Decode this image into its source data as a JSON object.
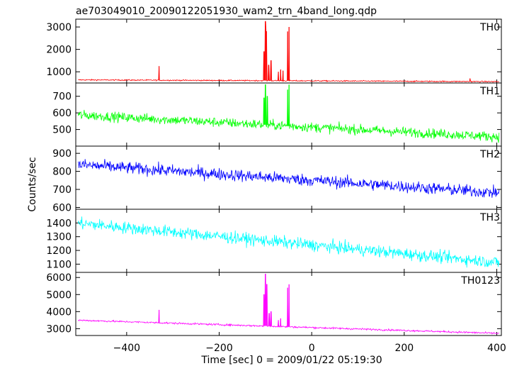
{
  "chart_data": {
    "type": "line",
    "title": "ae703049010_20090122051930_wam2_trn_4band_long.qdp",
    "xlabel": "Time [sec] 0 = 2009/01/22 05:19:30",
    "ylabel": "Counts/sec",
    "xlim": [
      -510,
      410
    ],
    "x_ticks": [
      -400,
      -200,
      0,
      200,
      400
    ],
    "x_tick_labels": [
      "−400",
      "−200",
      "0",
      "200",
      "400"
    ],
    "grid": false,
    "series": [
      {
        "name": "TH0",
        "color": "#ff0000",
        "ylim": [
          500,
          3350
        ],
        "y_ticks": [
          1000,
          2000,
          3000
        ],
        "baseline": [
          [
            -510,
            640
          ],
          [
            410,
            560
          ]
        ],
        "noise": 25,
        "spikes": [
          [
            -330,
            1250
          ],
          [
            -103,
            1900
          ],
          [
            -100,
            3250
          ],
          [
            -98,
            2800
          ],
          [
            -93,
            1300
          ],
          [
            -88,
            1500
          ],
          [
            -72,
            1000
          ],
          [
            -67,
            1100
          ],
          [
            -62,
            1050
          ],
          [
            -52,
            2800
          ],
          [
            -49,
            3000
          ],
          [
            342,
            700
          ]
        ]
      },
      {
        "name": "TH1",
        "color": "#00ff00",
        "ylim": [
          400,
          780
        ],
        "y_ticks": [
          500,
          600,
          700
        ],
        "baseline": [
          [
            -510,
            588
          ],
          [
            410,
            455
          ]
        ],
        "noise": 28,
        "spikes": [
          [
            -103,
            690
          ],
          [
            -100,
            770
          ],
          [
            -96,
            700
          ],
          [
            -52,
            740
          ],
          [
            -49,
            770
          ]
        ]
      },
      {
        "name": "TH2",
        "color": "#0000ff",
        "ylim": [
          590,
          940
        ],
        "y_ticks": [
          600,
          700,
          800,
          900
        ],
        "baseline": [
          [
            -510,
            838
          ],
          [
            410,
            680
          ]
        ],
        "noise": 32,
        "spikes": []
      },
      {
        "name": "TH3",
        "color": "#00ffff",
        "ylim": [
          1040,
          1500
        ],
        "y_ticks": [
          1100,
          1200,
          1300,
          1400
        ],
        "baseline": [
          [
            -510,
            1400
          ],
          [
            410,
            1110
          ]
        ],
        "noise": 42,
        "spikes": []
      },
      {
        "name": "TH0123",
        "color": "#ff00ff",
        "ylim": [
          2600,
          6300
        ],
        "y_ticks": [
          3000,
          4000,
          5000,
          6000
        ],
        "baseline": [
          [
            -510,
            3500
          ],
          [
            410,
            2720
          ]
        ],
        "noise": 50,
        "spikes": [
          [
            -330,
            4100
          ],
          [
            -103,
            5000
          ],
          [
            -100,
            6200
          ],
          [
            -97,
            5600
          ],
          [
            -92,
            3900
          ],
          [
            -88,
            4000
          ],
          [
            -72,
            3500
          ],
          [
            -67,
            3600
          ],
          [
            -52,
            5400
          ],
          [
            -49,
            5600
          ]
        ]
      }
    ]
  }
}
